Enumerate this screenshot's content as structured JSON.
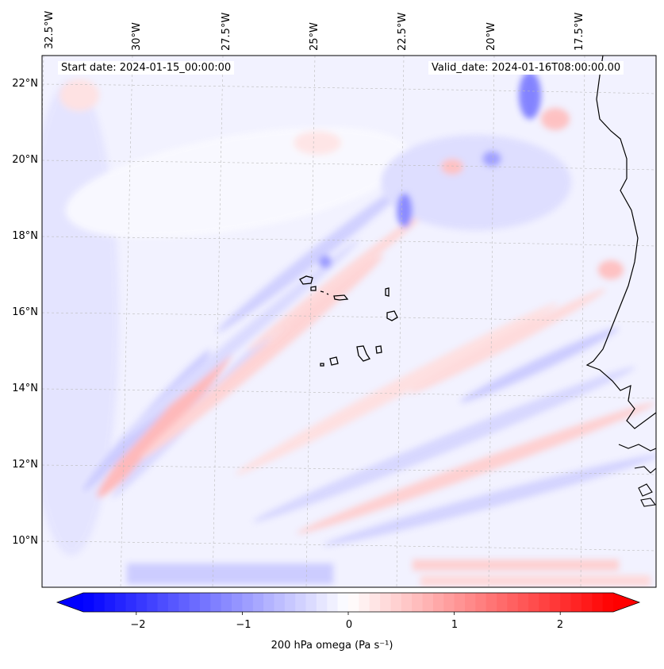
{
  "map": {
    "start_label": "Start date: 2024-01-15_00:00:00",
    "valid_label": "Valid_date: 2024-01-16T08:00:00.00",
    "lon_labels": [
      "32.5°W",
      "30°W",
      "27.5°W",
      "25°W",
      "22.5°W",
      "20°W",
      "17.5°W"
    ],
    "lat_labels": [
      "22°N",
      "20°N",
      "18°N",
      "16°N",
      "14°N",
      "12°N",
      "10°N"
    ],
    "field": "200 hPa omega",
    "region": {
      "lon_min": -33.0,
      "lon_max": -16.0,
      "lat_min": 8.8,
      "lat_max": 22.7
    }
  },
  "colorbar": {
    "label": "200 hPa omega (Pa s⁻¹)",
    "ticks": [
      "−2",
      "−1",
      "0",
      "1",
      "2"
    ],
    "tick_values": [
      -2,
      -1,
      0,
      1,
      2
    ],
    "range": [
      -2.5,
      2.5
    ],
    "colormap": "bwr",
    "extend": "both",
    "colors": {
      "negative": "#0000ff",
      "zero": "#ffffff",
      "positive": "#ff0000"
    }
  },
  "gridlines": {
    "style": "dashed",
    "color": "#bbbbbb"
  },
  "coastline_color": "#000000"
}
